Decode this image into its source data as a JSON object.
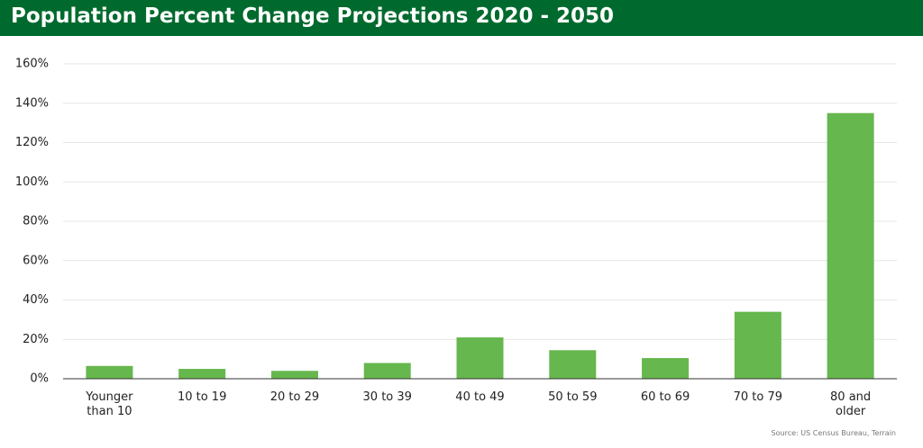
{
  "chart_data": {
    "type": "bar",
    "title": "Population Percent Change Projections 2020 - 2050",
    "source": "Source: US Census Bureau, Terrain",
    "categories": [
      "Younger than 10",
      "10 to 19",
      "20 to 29",
      "30 to 39",
      "40 to 49",
      "50 to 59",
      "60 to 69",
      "70 to 79",
      "80 and older"
    ],
    "values": [
      6.5,
      5,
      4,
      8,
      21,
      14.5,
      10.5,
      34,
      135
    ],
    "color": "#66b74d",
    "ylim": [
      0,
      160
    ],
    "yticks": [
      {
        "value": 0,
        "label": "0%"
      },
      {
        "value": 20,
        "label": "20%"
      },
      {
        "value": 40,
        "label": "40%"
      },
      {
        "value": 60,
        "label": "60%"
      },
      {
        "value": 80,
        "label": "80%"
      },
      {
        "value": 100,
        "label": "100%"
      },
      {
        "value": 120,
        "label": "120%"
      },
      {
        "value": 140,
        "label": "140%"
      },
      {
        "value": 160,
        "label": "160%"
      }
    ],
    "grid": true
  }
}
